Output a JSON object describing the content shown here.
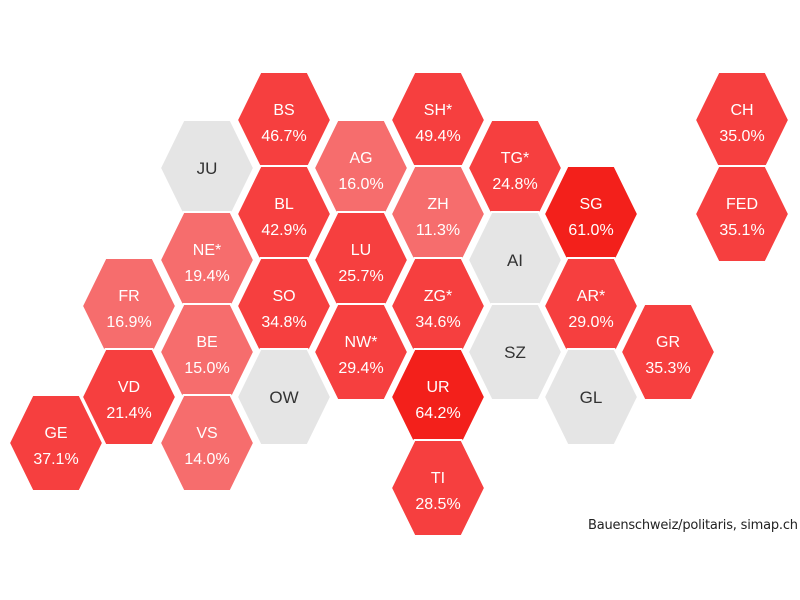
{
  "chart_data": {
    "type": "hexmap",
    "colors": {
      "na": "#e5e5e5",
      "low": "#f66d6d",
      "mid": "#f63f3f",
      "high": "#f3201b"
    },
    "cantons": [
      {
        "code": "BS",
        "value": "46.7%",
        "num": 46.7
      },
      {
        "code": "SH*",
        "value": "49.4%",
        "num": 49.4
      },
      {
        "code": "CH",
        "value": "35.0%",
        "num": 35.0
      },
      {
        "code": "JU",
        "value": "",
        "num": null
      },
      {
        "code": "AG",
        "value": "16.0%",
        "num": 16.0
      },
      {
        "code": "TG*",
        "value": "24.8%",
        "num": 24.8
      },
      {
        "code": "BL",
        "value": "42.9%",
        "num": 42.9
      },
      {
        "code": "ZH",
        "value": "11.3%",
        "num": 11.3
      },
      {
        "code": "SG",
        "value": "61.0%",
        "num": 61.0
      },
      {
        "code": "FED",
        "value": "35.1%",
        "num": 35.1
      },
      {
        "code": "NE*",
        "value": "19.4%",
        "num": 19.4
      },
      {
        "code": "LU",
        "value": "25.7%",
        "num": 25.7
      },
      {
        "code": "AI",
        "value": "",
        "num": null
      },
      {
        "code": "FR",
        "value": "16.9%",
        "num": 16.9
      },
      {
        "code": "SO",
        "value": "34.8%",
        "num": 34.8
      },
      {
        "code": "ZG*",
        "value": "34.6%",
        "num": 34.6
      },
      {
        "code": "AR*",
        "value": "29.0%",
        "num": 29.0
      },
      {
        "code": "BE",
        "value": "15.0%",
        "num": 15.0
      },
      {
        "code": "NW*",
        "value": "29.4%",
        "num": 29.4
      },
      {
        "code": "SZ",
        "value": "",
        "num": null
      },
      {
        "code": "GR",
        "value": "35.3%",
        "num": 35.3
      },
      {
        "code": "VD",
        "value": "21.4%",
        "num": 21.4
      },
      {
        "code": "OW",
        "value": "",
        "num": null
      },
      {
        "code": "UR",
        "value": "64.2%",
        "num": 64.2
      },
      {
        "code": "GL",
        "value": "",
        "num": null
      },
      {
        "code": "GE",
        "value": "37.1%",
        "num": 37.1
      },
      {
        "code": "VS",
        "value": "14.0%",
        "num": 14.0
      },
      {
        "code": "TI",
        "value": "28.5%",
        "num": 28.5
      }
    ]
  },
  "source": "Bauenschweiz/politaris, simap.ch"
}
